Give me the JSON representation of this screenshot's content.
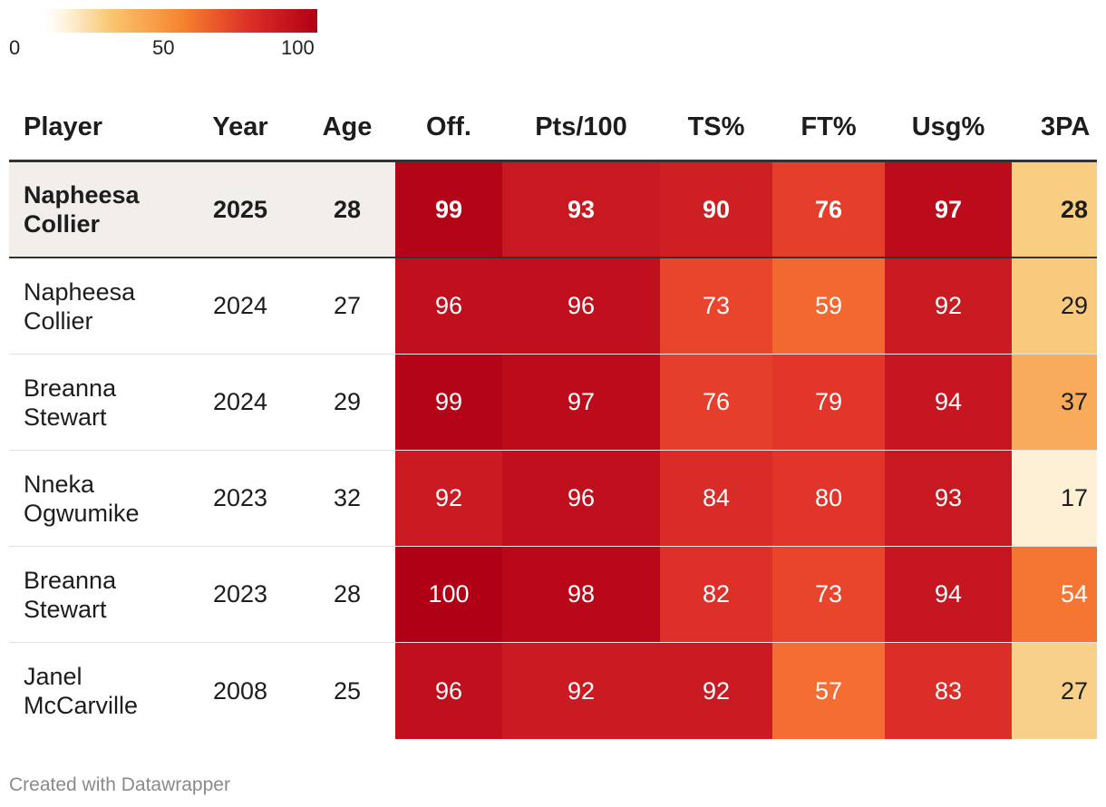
{
  "legend": {
    "ticks": [
      "0",
      "50",
      "100"
    ]
  },
  "chart_data": {
    "type": "table",
    "columns": [
      "Player",
      "Year",
      "Age",
      "Off.",
      "Pts/100",
      "TS%",
      "FT%",
      "Usg%",
      "3PA"
    ],
    "color_scale": {
      "min": 0,
      "mid": 50,
      "max": 100
    },
    "highlight_row": 0,
    "rows": [
      {
        "player": "Napheesa Collier",
        "year": "2025",
        "age": "28",
        "off": "99",
        "pts100": "93",
        "ts": "90",
        "ft": "76",
        "usg": "97",
        "tpa": "28"
      },
      {
        "player": "Napheesa Collier",
        "year": "2024",
        "age": "27",
        "off": "96",
        "pts100": "96",
        "ts": "73",
        "ft": "59",
        "usg": "92",
        "tpa": "29"
      },
      {
        "player": "Breanna Stewart",
        "year": "2024",
        "age": "29",
        "off": "99",
        "pts100": "97",
        "ts": "76",
        "ft": "79",
        "usg": "94",
        "tpa": "37"
      },
      {
        "player": "Nneka Ogwumike",
        "year": "2023",
        "age": "32",
        "off": "92",
        "pts100": "96",
        "ts": "84",
        "ft": "80",
        "usg": "93",
        "tpa": "17"
      },
      {
        "player": "Breanna Stewart",
        "year": "2023",
        "age": "28",
        "off": "100",
        "pts100": "98",
        "ts": "82",
        "ft": "73",
        "usg": "94",
        "tpa": "54"
      },
      {
        "player": "Janel McCarville",
        "year": "2008",
        "age": "25",
        "off": "96",
        "pts100": "92",
        "ts": "92",
        "ft": "57",
        "usg": "83",
        "tpa": "27"
      }
    ]
  },
  "footer": {
    "credit": "Created with Datawrapper"
  }
}
